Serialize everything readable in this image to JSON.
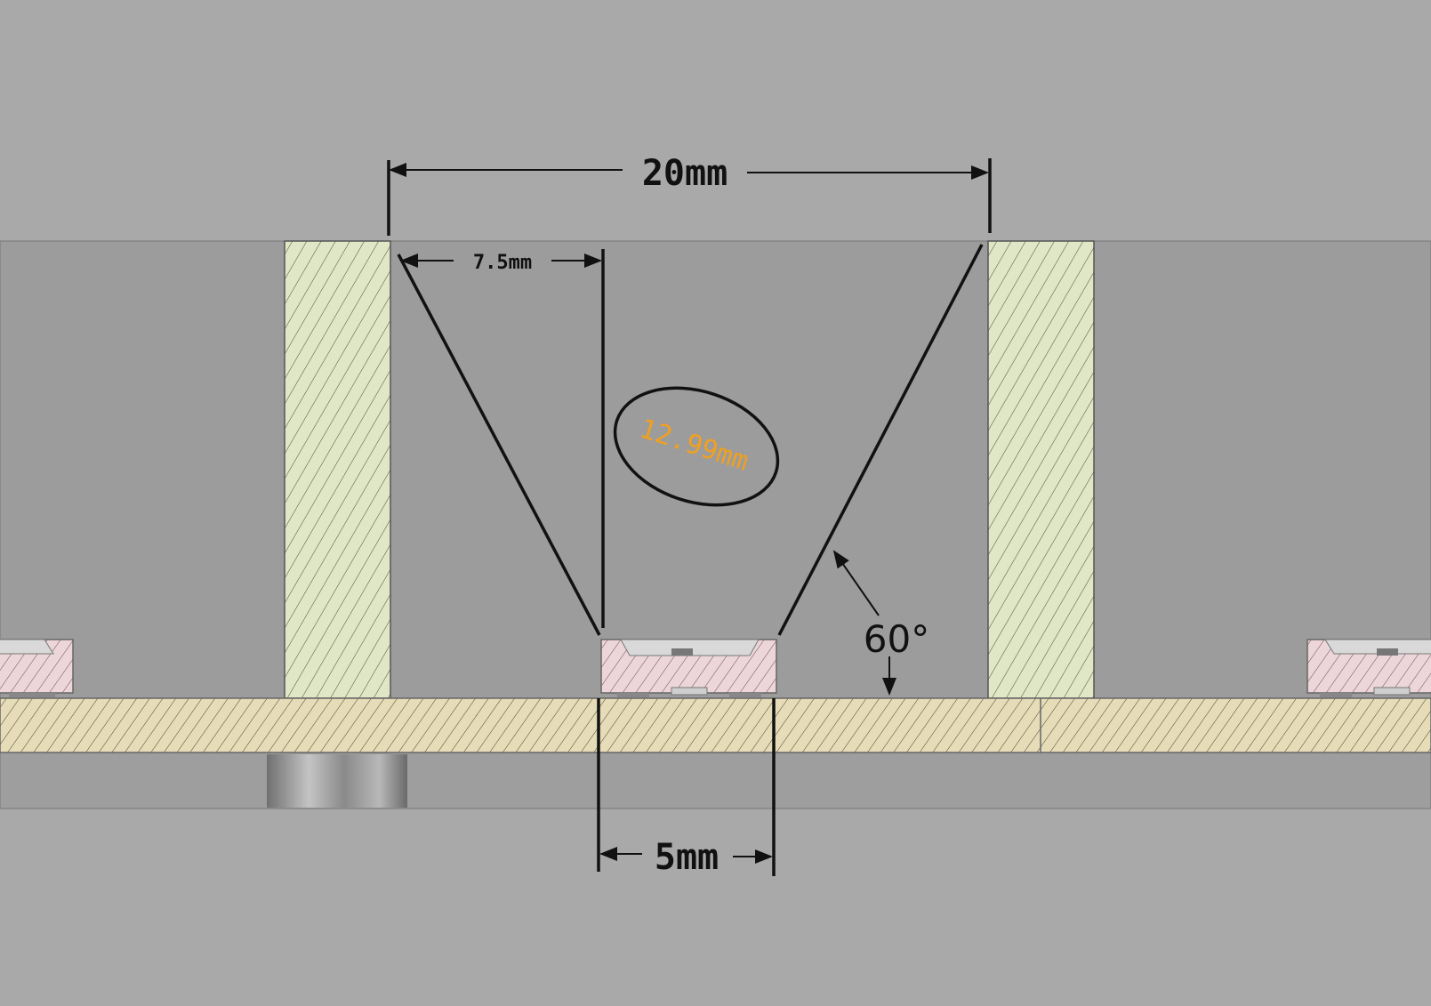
{
  "dimensions": {
    "overall_width": "20mm",
    "half_width": "7.5mm",
    "slant_length": "12.99mm",
    "base_width": "5mm",
    "angle": "60°"
  },
  "colors": {
    "background": "#a9a9a9",
    "cavity": "#9c9c9c",
    "wall_fill": "#dfe7c6",
    "board_fill": "#e6dcb8",
    "component_fill": "#ecd6d9",
    "dimension_line": "#111111",
    "accent": "#f0a020"
  }
}
